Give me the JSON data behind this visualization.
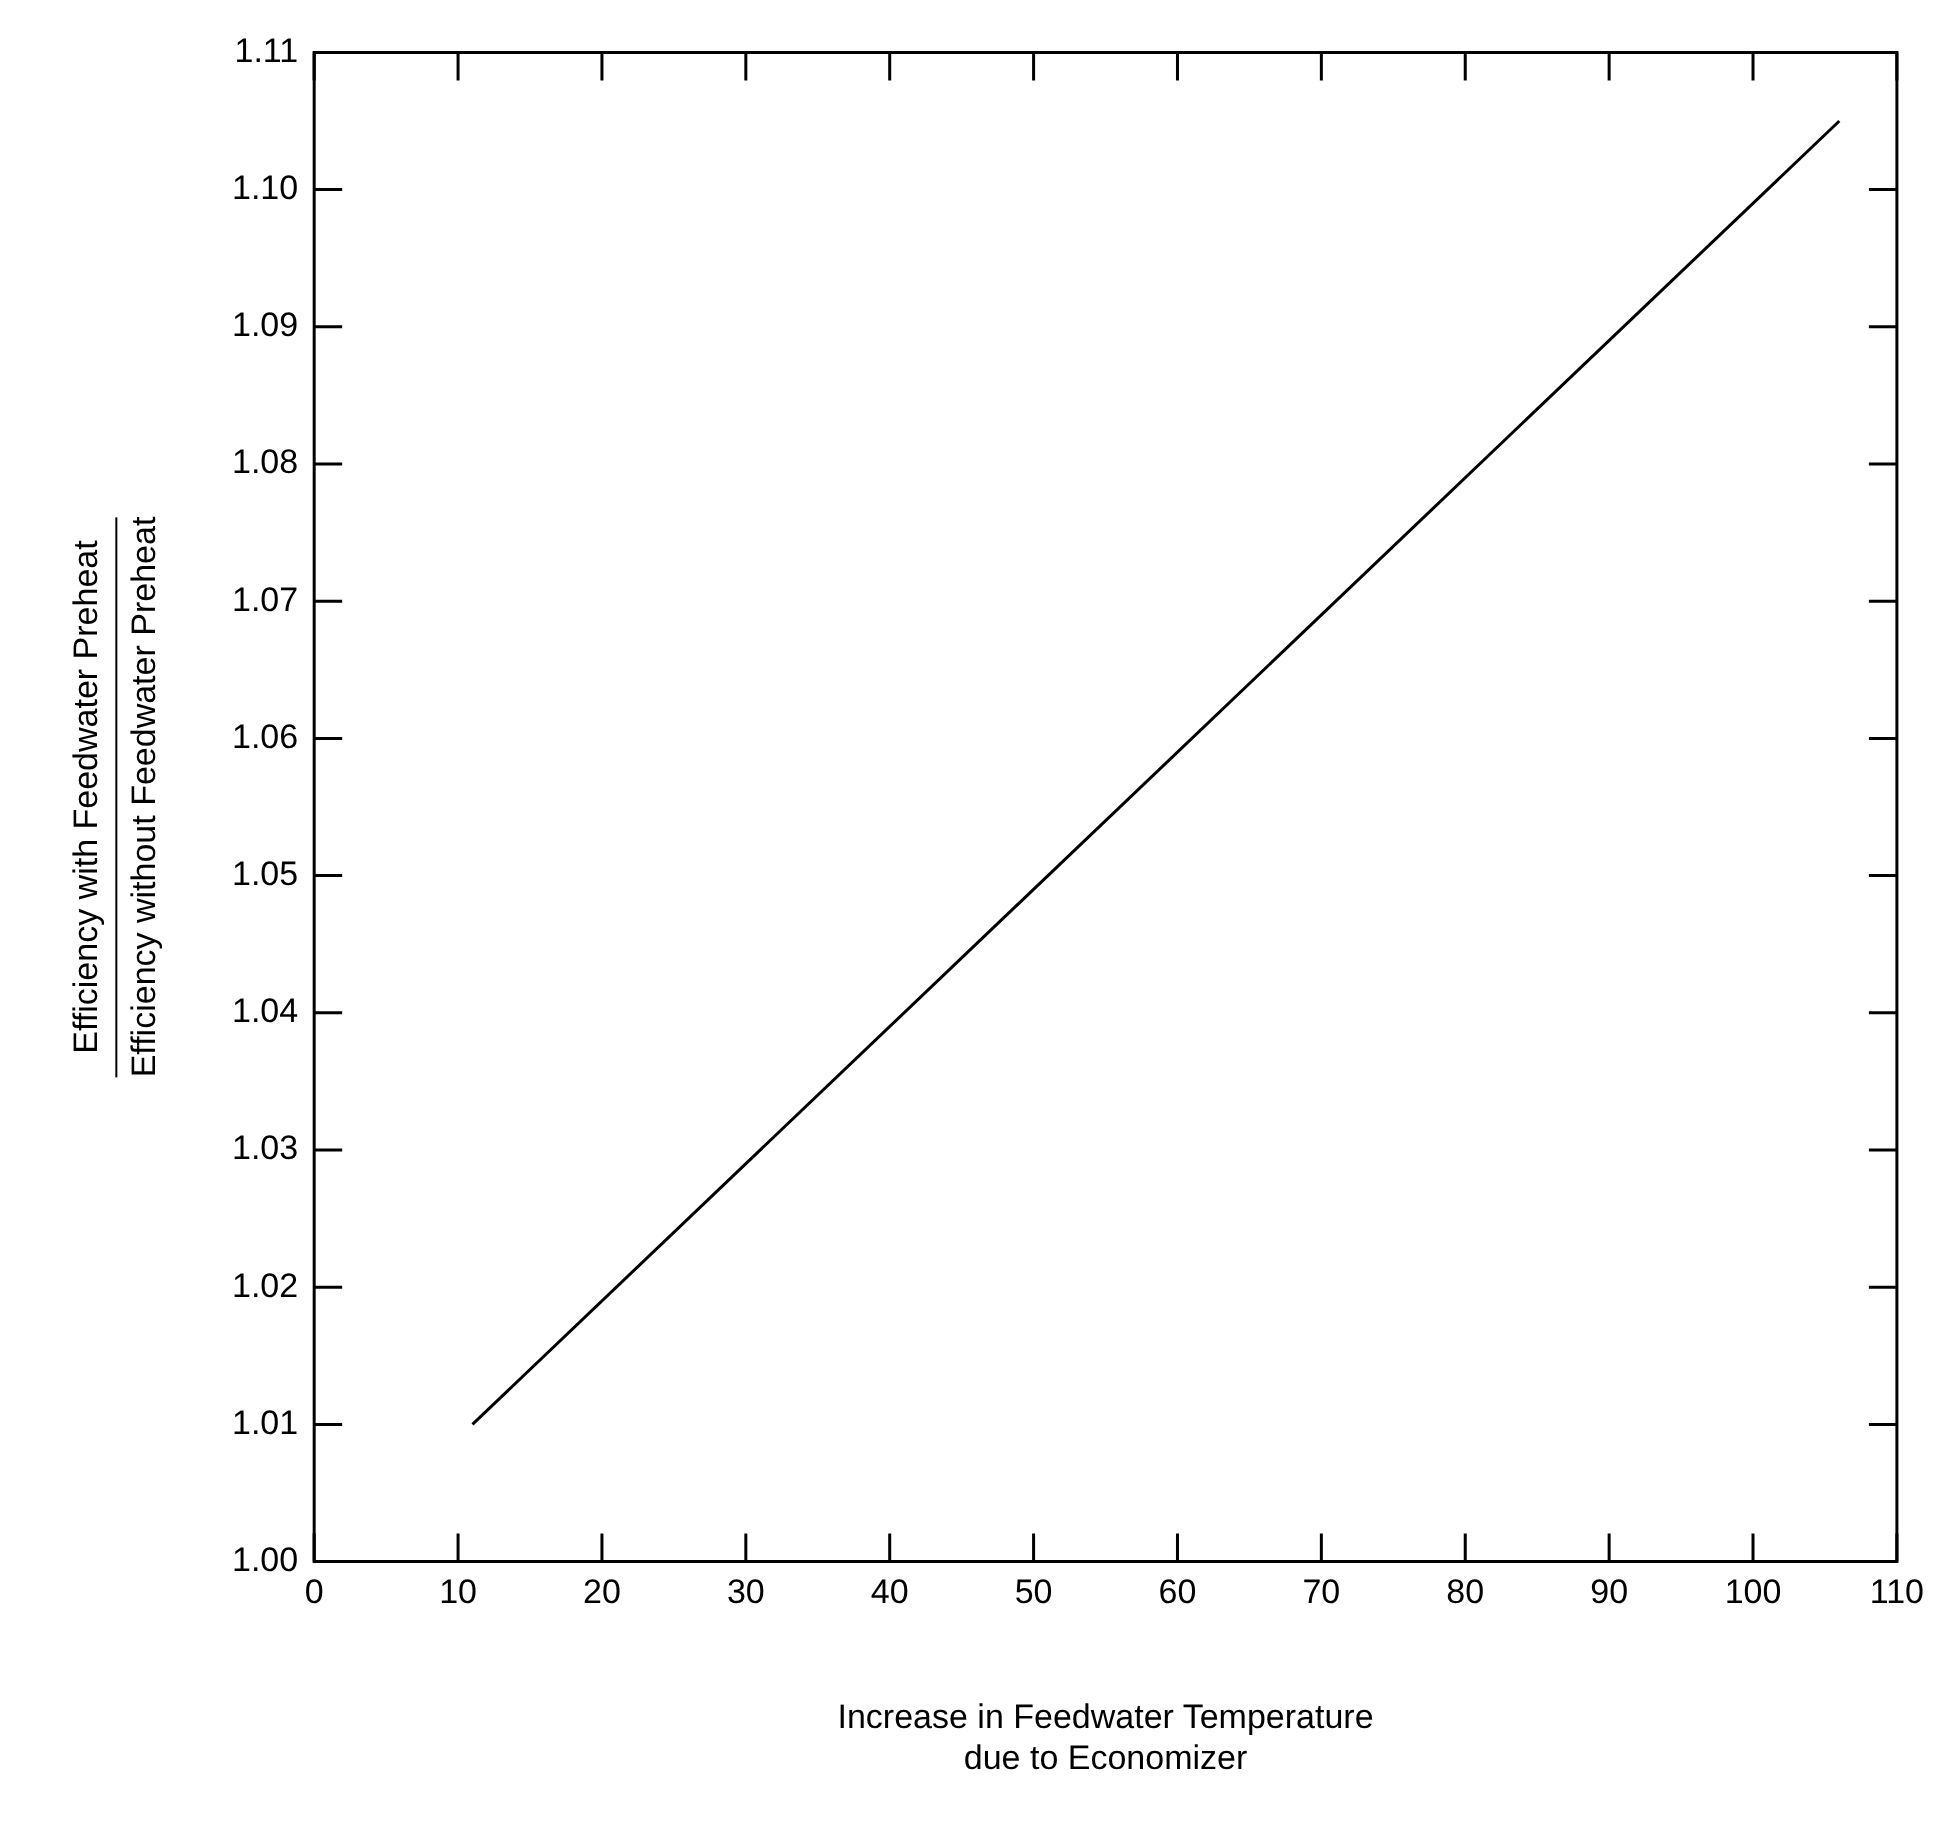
{
  "chart_data": {
    "type": "line",
    "xlabel": "Increase in Feedwater Temperature\ndue to Economizer",
    "ylabel": "Efficiency with Feedwater Preheat\nEfficiency without Feedwater Preheat",
    "x": [
      11,
      106
    ],
    "series": [
      {
        "color": "#000000",
        "values": [
          1.01,
          1.105
        ]
      }
    ],
    "xlim": [
      0,
      110
    ],
    "xticks": [
      0,
      10,
      20,
      30,
      40,
      50,
      60,
      70,
      80,
      90,
      100,
      110
    ],
    "ylim": [
      1.0,
      1.11
    ],
    "yticks": [
      {
        "value": 1.0,
        "label": "1.00"
      },
      {
        "value": 1.01,
        "label": "1.01"
      },
      {
        "value": 1.02,
        "label": "1.02"
      },
      {
        "value": 1.03,
        "label": "1.03"
      },
      {
        "value": 1.04,
        "label": "1.04"
      },
      {
        "value": 1.05,
        "label": "1.05"
      },
      {
        "value": 1.06,
        "label": "1.06"
      },
      {
        "value": 1.07,
        "label": "1.07"
      },
      {
        "value": 1.08,
        "label": "1.08"
      },
      {
        "value": 1.09,
        "label": "1.09"
      },
      {
        "value": 1.1,
        "label": "1.10"
      },
      {
        "value": 1.11,
        "label": "1.11"
      }
    ],
    "grid": false,
    "legend": false,
    "marker": "none",
    "line_style": "solid"
  }
}
